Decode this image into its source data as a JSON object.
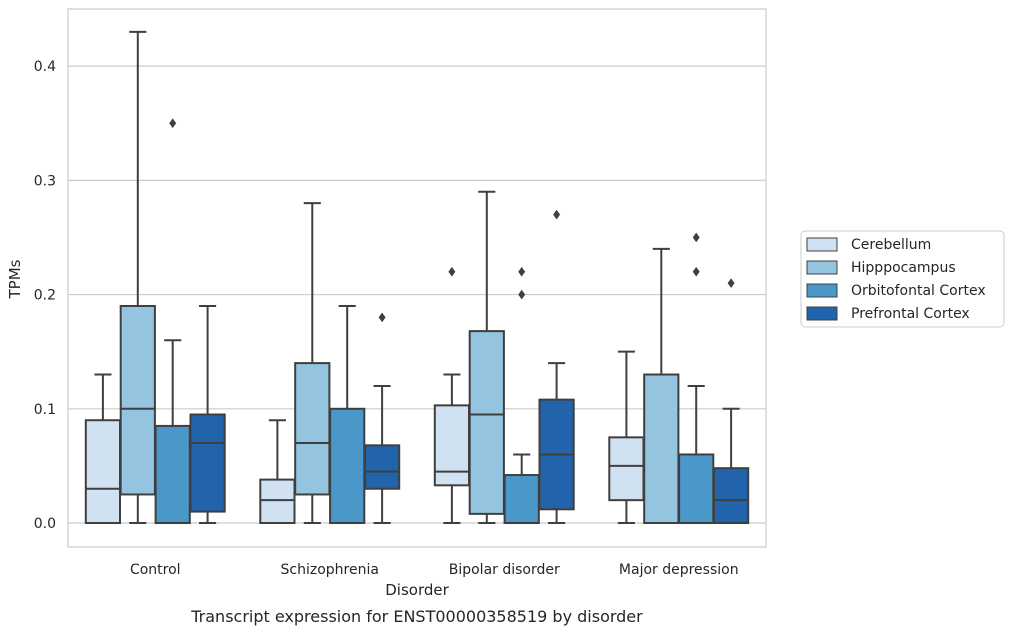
{
  "caption": "Transcript expression for ENST00000358519 by disorder",
  "chart_data": {
    "type": "boxplot",
    "xlabel": "Disorder",
    "ylabel": "TPMs",
    "ylim": [
      -0.021,
      0.45
    ],
    "yticks": [
      0.0,
      0.1,
      0.2,
      0.3,
      0.4
    ],
    "ytick_labels": [
      "0.0",
      "0.1",
      "0.2",
      "0.3",
      "0.4"
    ],
    "grid": "horizontal",
    "legend_position": "right",
    "categories": [
      "Control",
      "Schizophrenia",
      "Bipolar disorder",
      "Major depression"
    ],
    "series": [
      {
        "name": "Cerebellum",
        "color": "#d0e1f2",
        "boxes": [
          {
            "whislo": 0.0,
            "q1": 0.0,
            "med": 0.03,
            "q3": 0.09,
            "whishi": 0.13,
            "fliers": []
          },
          {
            "whislo": 0.0,
            "q1": 0.0,
            "med": 0.02,
            "q3": 0.038,
            "whishi": 0.09,
            "fliers": []
          },
          {
            "whislo": 0.0,
            "q1": 0.033,
            "med": 0.045,
            "q3": 0.103,
            "whishi": 0.13,
            "fliers": [
              0.22
            ]
          },
          {
            "whislo": 0.0,
            "q1": 0.02,
            "med": 0.05,
            "q3": 0.075,
            "whishi": 0.15,
            "fliers": []
          }
        ]
      },
      {
        "name": "Hipppocampus",
        "color": "#94c4df",
        "boxes": [
          {
            "whislo": 0.0,
            "q1": 0.025,
            "med": 0.1,
            "q3": 0.19,
            "whishi": 0.43,
            "fliers": []
          },
          {
            "whislo": 0.0,
            "q1": 0.025,
            "med": 0.07,
            "q3": 0.14,
            "whishi": 0.28,
            "fliers": []
          },
          {
            "whislo": 0.0,
            "q1": 0.008,
            "med": 0.095,
            "q3": 0.168,
            "whishi": 0.29,
            "fliers": []
          },
          {
            "whislo": 0.0,
            "q1": 0.0,
            "med": 0.0,
            "q3": 0.13,
            "whishi": 0.24,
            "fliers": []
          }
        ]
      },
      {
        "name": "Orbitofontal Cortex",
        "color": "#4a98c9",
        "boxes": [
          {
            "whislo": 0.0,
            "q1": 0.0,
            "med": 0.0,
            "q3": 0.085,
            "whishi": 0.16,
            "fliers": [
              0.35
            ]
          },
          {
            "whislo": 0.0,
            "q1": 0.0,
            "med": 0.0,
            "q3": 0.1,
            "whishi": 0.19,
            "fliers": []
          },
          {
            "whislo": 0.0,
            "q1": 0.0,
            "med": 0.0,
            "q3": 0.042,
            "whishi": 0.06,
            "fliers": [
              0.2,
              0.22
            ]
          },
          {
            "whislo": 0.0,
            "q1": 0.0,
            "med": 0.0,
            "q3": 0.06,
            "whishi": 0.12,
            "fliers": [
              0.22,
              0.25
            ]
          }
        ]
      },
      {
        "name": "Prefrontal Cortex",
        "color": "#2164ab",
        "boxes": [
          {
            "whislo": 0.0,
            "q1": 0.01,
            "med": 0.07,
            "q3": 0.095,
            "whishi": 0.19,
            "fliers": []
          },
          {
            "whislo": 0.0,
            "q1": 0.03,
            "med": 0.045,
            "q3": 0.068,
            "whishi": 0.12,
            "fliers": [
              0.18
            ]
          },
          {
            "whislo": 0.0,
            "q1": 0.012,
            "med": 0.06,
            "q3": 0.108,
            "whishi": 0.14,
            "fliers": [
              0.27
            ]
          },
          {
            "whislo": 0.0,
            "q1": 0.0,
            "med": 0.02,
            "q3": 0.048,
            "whishi": 0.1,
            "fliers": [
              0.21
            ]
          }
        ]
      }
    ]
  }
}
